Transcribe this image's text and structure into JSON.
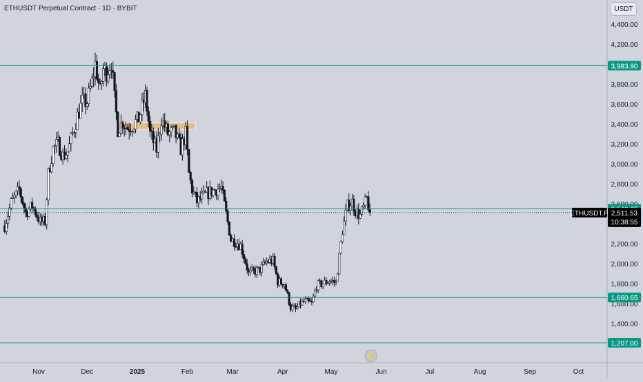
{
  "header": {
    "title": "ETHUSDT Perpetual Contract · 1D · BYBIT",
    "currency": "USDT"
  },
  "watermark_icon": "bolt-logo-icon",
  "colors": {
    "background": "#d1d4dc",
    "candle_up": "#ffffff",
    "candle_down": "#131722",
    "wick": "#131722",
    "level_line": "#089981",
    "zone_fill": "#e8b77a",
    "price_tag": "#000000"
  },
  "chart_data": {
    "type": "candlestick",
    "symbol": "ETHUSDT.P",
    "exchange": "BYBIT",
    "timeframe": "1D",
    "ylim": [
      1200,
      4500
    ],
    "y_ticks": [
      1400,
      1600,
      1800,
      2000,
      2200,
      2400,
      2600,
      2800,
      3000,
      3200,
      3400,
      3600,
      3800,
      4000,
      4200,
      4400
    ],
    "y_tick_labels": [
      "1,400.00",
      "1,600.00",
      "1,800.00",
      "2,000.00",
      "2,200.00",
      "2,400.00",
      "2,600.00",
      "2,800.00",
      "3,000.00",
      "3,200.00",
      "3,400.00",
      "3,600.00",
      "3,800.00",
      "4,000.00",
      "4,200.00",
      "4,400.00"
    ],
    "x_labels": [
      "Nov",
      "Dec",
      "2025",
      "Feb",
      "Mar",
      "Apr",
      "May",
      "Jun",
      "Jul",
      "Aug",
      "Sep",
      "Oct"
    ],
    "horizontal_levels": [
      {
        "label": "3,983.90",
        "value": 3983.9
      },
      {
        "label": "2,549.65",
        "value": 2549.65
      },
      {
        "label": "1,660.65",
        "value": 1660.65
      },
      {
        "label": "1,207.00",
        "value": 1207.0
      }
    ],
    "current_price": {
      "symbol": "ETHUSDT.P",
      "label": "2,511.53",
      "value": 2511.53,
      "countdown": "10:38:55"
    },
    "zone": {
      "y_from": 3345,
      "y_to": 3410,
      "start": "2024-12-19",
      "end": "2025-02-06"
    },
    "close_path": [
      [
        "2024-10-11",
        2380
      ],
      [
        "2024-10-15",
        2610
      ],
      [
        "2024-10-20",
        2740
      ],
      [
        "2024-10-24",
        2510
      ],
      [
        "2024-10-28",
        2580
      ],
      [
        "2024-11-02",
        2420
      ],
      [
        "2024-11-05",
        2420
      ],
      [
        "2024-11-07",
        2900
      ],
      [
        "2024-11-10",
        3150
      ],
      [
        "2024-11-13",
        3200
      ],
      [
        "2024-11-16",
        3080
      ],
      [
        "2024-11-19",
        3120
      ],
      [
        "2024-11-22",
        3300
      ],
      [
        "2024-11-25",
        3480
      ],
      [
        "2024-11-28",
        3620
      ],
      [
        "2024-12-01",
        3620
      ],
      [
        "2024-12-04",
        3820
      ],
      [
        "2024-12-06",
        4000
      ],
      [
        "2024-12-09",
        3720
      ],
      [
        "2024-12-11",
        3950
      ],
      [
        "2024-12-13",
        3920
      ],
      [
        "2024-12-16",
        4020
      ],
      [
        "2024-12-18",
        3650
      ],
      [
        "2024-12-20",
        3350
      ],
      [
        "2024-12-23",
        3420
      ],
      [
        "2024-12-26",
        3360
      ],
      [
        "2024-12-29",
        3390
      ],
      [
        "2025-01-02",
        3450
      ],
      [
        "2025-01-06",
        3680
      ],
      [
        "2025-01-09",
        3300
      ],
      [
        "2025-01-13",
        3140
      ],
      [
        "2025-01-16",
        3450
      ],
      [
        "2025-01-20",
        3300
      ],
      [
        "2025-01-24",
        3320
      ],
      [
        "2025-01-28",
        3150
      ],
      [
        "2025-01-31",
        3300
      ],
      [
        "2025-02-02",
        2900
      ],
      [
        "2025-02-04",
        2740
      ],
      [
        "2025-02-07",
        2620
      ],
      [
        "2025-02-10",
        2660
      ],
      [
        "2025-02-13",
        2700
      ],
      [
        "2025-02-18",
        2740
      ],
      [
        "2025-02-22",
        2760
      ],
      [
        "2025-02-25",
        2500
      ],
      [
        "2025-02-28",
        2240
      ],
      [
        "2025-03-03",
        2220
      ],
      [
        "2025-03-06",
        2180
      ],
      [
        "2025-03-09",
        2020
      ],
      [
        "2025-03-11",
        1900
      ],
      [
        "2025-03-14",
        1920
      ],
      [
        "2025-03-18",
        1940
      ],
      [
        "2025-03-22",
        2020
      ],
      [
        "2025-03-26",
        2030
      ],
      [
        "2025-03-29",
        1820
      ],
      [
        "2025-04-02",
        1800
      ],
      [
        "2025-04-06",
        1560
      ],
      [
        "2025-04-09",
        1540
      ],
      [
        "2025-04-12",
        1600
      ],
      [
        "2025-04-15",
        1620
      ],
      [
        "2025-04-19",
        1600
      ],
      [
        "2025-04-22",
        1780
      ],
      [
        "2025-04-26",
        1800
      ],
      [
        "2025-04-30",
        1830
      ],
      [
        "2025-05-04",
        1810
      ],
      [
        "2025-05-08",
        2330
      ],
      [
        "2025-05-11",
        2580
      ],
      [
        "2025-05-14",
        2620
      ],
      [
        "2025-05-16",
        2530
      ],
      [
        "2025-05-19",
        2480
      ],
      [
        "2025-05-21",
        2560
      ],
      [
        "2025-05-23",
        2650
      ],
      [
        "2025-05-25",
        2511.53
      ]
    ]
  }
}
